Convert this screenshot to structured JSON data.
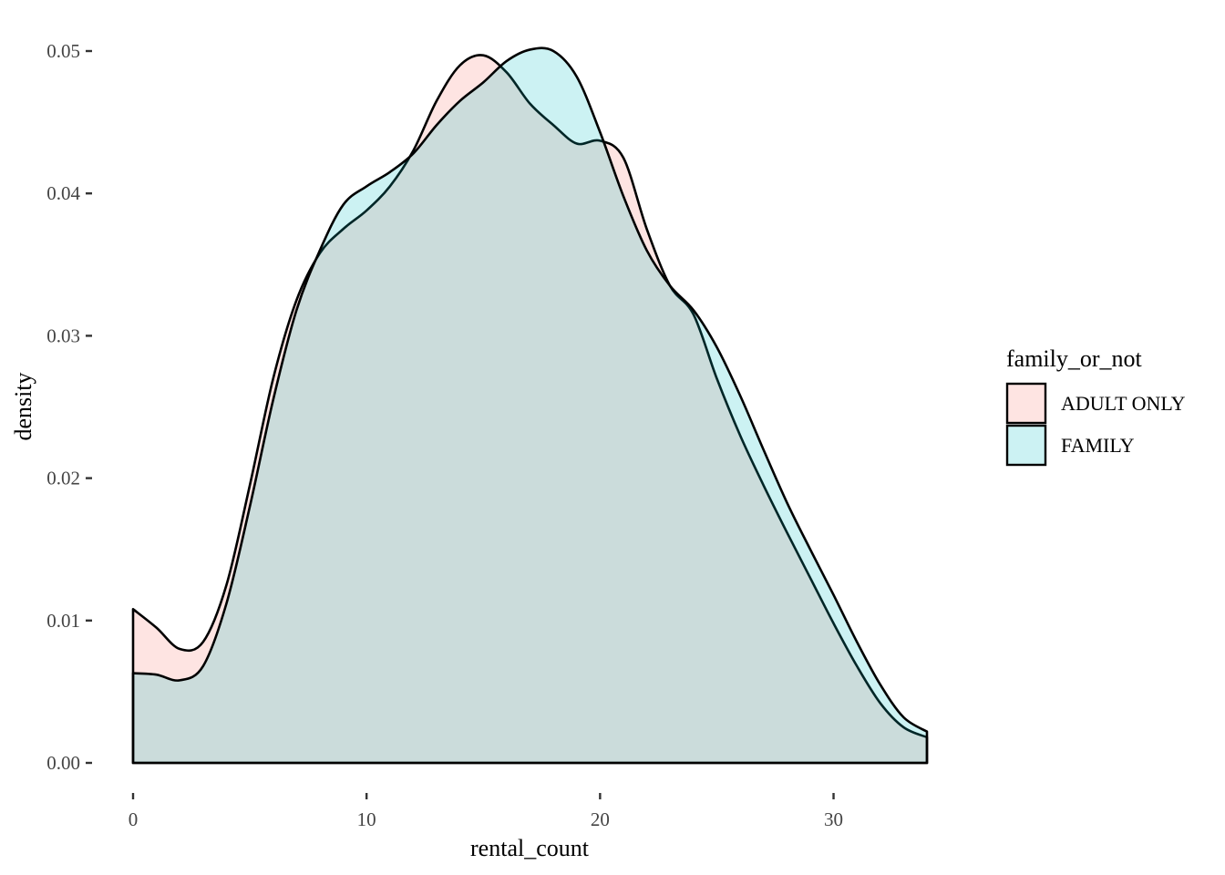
{
  "chart_data": {
    "type": "area",
    "subtype": "density",
    "xlabel": "rental_count",
    "ylabel": "density",
    "xlim": [
      0,
      34
    ],
    "ylim": [
      0,
      0.05
    ],
    "x_ticks": [
      0,
      10,
      20,
      30
    ],
    "x_tick_labels": [
      "0",
      "10",
      "20",
      "30"
    ],
    "y_ticks": [
      0,
      0.01,
      0.02,
      0.03,
      0.04,
      0.05
    ],
    "y_tick_labels": [
      "0.00",
      "0.01",
      "0.02",
      "0.03",
      "0.04",
      "0.05"
    ],
    "grid": false,
    "legend": {
      "title": "family_or_not",
      "position": "right",
      "items": [
        "ADULT ONLY",
        "FAMILY"
      ]
    },
    "series": [
      {
        "name": "ADULT ONLY",
        "fill": "#F8766D",
        "points": [
          [
            0,
            0.0108
          ],
          [
            1,
            0.0095
          ],
          [
            2,
            0.008
          ],
          [
            3,
            0.0085
          ],
          [
            4,
            0.0125
          ],
          [
            5,
            0.0195
          ],
          [
            6,
            0.027
          ],
          [
            7,
            0.0325
          ],
          [
            8,
            0.0358
          ],
          [
            9,
            0.0375
          ],
          [
            10,
            0.0388
          ],
          [
            11,
            0.0405
          ],
          [
            12,
            0.043
          ],
          [
            13,
            0.0465
          ],
          [
            14,
            0.049
          ],
          [
            15,
            0.0497
          ],
          [
            16,
            0.0485
          ],
          [
            17,
            0.0463
          ],
          [
            18,
            0.0448
          ],
          [
            19,
            0.0435
          ],
          [
            20,
            0.0437
          ],
          [
            21,
            0.0425
          ],
          [
            22,
            0.0375
          ],
          [
            23,
            0.0335
          ],
          [
            24,
            0.0315
          ],
          [
            25,
            0.027
          ],
          [
            26,
            0.023
          ],
          [
            27,
            0.0195
          ],
          [
            28,
            0.0162
          ],
          [
            29,
            0.013
          ],
          [
            30,
            0.0098
          ],
          [
            31,
            0.0068
          ],
          [
            32,
            0.0042
          ],
          [
            33,
            0.0025
          ],
          [
            34,
            0.0018
          ]
        ]
      },
      {
        "name": "FAMILY",
        "fill": "#00BFC4",
        "points": [
          [
            0,
            0.0063
          ],
          [
            1,
            0.0062
          ],
          [
            2,
            0.0058
          ],
          [
            3,
            0.0068
          ],
          [
            4,
            0.0112
          ],
          [
            5,
            0.018
          ],
          [
            6,
            0.0255
          ],
          [
            7,
            0.0318
          ],
          [
            8,
            0.036
          ],
          [
            9,
            0.0392
          ],
          [
            10,
            0.0405
          ],
          [
            11,
            0.0415
          ],
          [
            12,
            0.0428
          ],
          [
            13,
            0.0448
          ],
          [
            14,
            0.0465
          ],
          [
            15,
            0.0478
          ],
          [
            16,
            0.0493
          ],
          [
            17,
            0.0501
          ],
          [
            18,
            0.05
          ],
          [
            19,
            0.0482
          ],
          [
            20,
            0.0443
          ],
          [
            21,
            0.0398
          ],
          [
            22,
            0.036
          ],
          [
            23,
            0.0335
          ],
          [
            24,
            0.0318
          ],
          [
            25,
            0.0292
          ],
          [
            26,
            0.0258
          ],
          [
            27,
            0.022
          ],
          [
            28,
            0.0183
          ],
          [
            29,
            0.015
          ],
          [
            30,
            0.0118
          ],
          [
            31,
            0.0085
          ],
          [
            32,
            0.0055
          ],
          [
            33,
            0.0032
          ],
          [
            34,
            0.0022
          ]
        ]
      }
    ]
  }
}
